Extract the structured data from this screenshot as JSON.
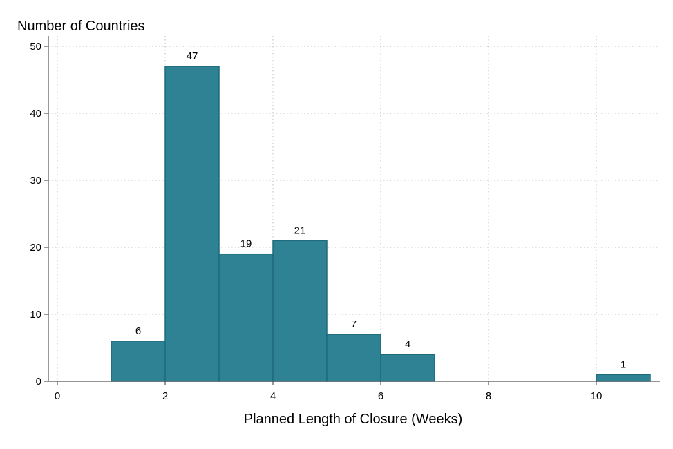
{
  "chart_data": {
    "type": "bar",
    "subtype": "histogram",
    "ylabel": "Number of Countries",
    "xlabel": "Planned Length of Closure (Weeks)",
    "xlim": [
      0,
      11
    ],
    "ylim": [
      0,
      50
    ],
    "xticks": [
      0,
      2,
      4,
      6,
      8,
      10
    ],
    "yticks": [
      0,
      10,
      20,
      30,
      40,
      50
    ],
    "grid": true,
    "bar_color": "#2e8294",
    "bar_edge_color": "#1f6b7c",
    "bins": [
      {
        "x0": 1,
        "x1": 2,
        "value": 6,
        "label": "6"
      },
      {
        "x0": 2,
        "x1": 3,
        "value": 47,
        "label": "47"
      },
      {
        "x0": 3,
        "x1": 4,
        "value": 19,
        "label": "19"
      },
      {
        "x0": 4,
        "x1": 5,
        "value": 21,
        "label": "21"
      },
      {
        "x0": 5,
        "x1": 6,
        "value": 7,
        "label": "7"
      },
      {
        "x0": 6,
        "x1": 7,
        "value": 4,
        "label": "4"
      },
      {
        "x0": 10,
        "x1": 11,
        "value": 1,
        "label": "1"
      }
    ]
  }
}
